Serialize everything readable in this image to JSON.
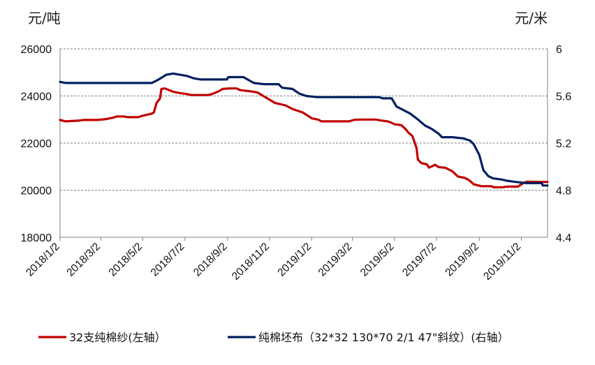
{
  "chart_data": {
    "type": "line",
    "left_axis_unit": "元/吨",
    "right_axis_unit": "元/米",
    "left_ylim": [
      18000,
      26000
    ],
    "left_ticks": [
      "26000",
      "24000",
      "22000",
      "20000",
      "18000"
    ],
    "right_ylim": [
      4.4,
      6.0
    ],
    "right_ticks": [
      "6",
      "5.6",
      "5.2",
      "4.8",
      "4.4"
    ],
    "xlim": [
      "2018-01-02",
      "2019-12-10"
    ],
    "x_ticks": [
      {
        "date": "2018-01-02",
        "label": "2018/1/2"
      },
      {
        "date": "2018-03-02",
        "label": "2018/3/2"
      },
      {
        "date": "2018-05-02",
        "label": "2018/5/2"
      },
      {
        "date": "2018-07-02",
        "label": "2018/7/2"
      },
      {
        "date": "2018-09-02",
        "label": "2018/9/2"
      },
      {
        "date": "2018-11-02",
        "label": "2018/11/2"
      },
      {
        "date": "2019-01-02",
        "label": "2019/1/2"
      },
      {
        "date": "2019-03-02",
        "label": "2019/3/2"
      },
      {
        "date": "2019-05-02",
        "label": "2019/5/2"
      },
      {
        "date": "2019-07-02",
        "label": "2019/7/2"
      },
      {
        "date": "2019-09-02",
        "label": "2019/9/2"
      },
      {
        "date": "2019-11-02",
        "label": "2019/11/2"
      }
    ],
    "grid": "horizontal dashed",
    "legend_position": "bottom",
    "series": [
      {
        "name": "32支纯棉纱(左轴）",
        "axis": "left",
        "color": "#c00000",
        "points": [
          [
            "2018-01-02",
            22980
          ],
          [
            "2018-01-10",
            22920
          ],
          [
            "2018-01-28",
            22950
          ],
          [
            "2018-02-05",
            22980
          ],
          [
            "2018-02-25",
            22980
          ],
          [
            "2018-03-10",
            23020
          ],
          [
            "2018-03-20",
            23080
          ],
          [
            "2018-03-25",
            23130
          ],
          [
            "2018-04-05",
            23130
          ],
          [
            "2018-04-10",
            23100
          ],
          [
            "2018-04-25",
            23100
          ],
          [
            "2018-05-02",
            23160
          ],
          [
            "2018-05-15",
            23250
          ],
          [
            "2018-05-18",
            23300
          ],
          [
            "2018-05-22",
            23700
          ],
          [
            "2018-05-27",
            23900
          ],
          [
            "2018-05-29",
            24300
          ],
          [
            "2018-06-03",
            24320
          ],
          [
            "2018-06-15",
            24180
          ],
          [
            "2018-06-25",
            24120
          ],
          [
            "2018-07-05",
            24080
          ],
          [
            "2018-07-12",
            24040
          ],
          [
            "2018-08-05",
            24040
          ],
          [
            "2018-08-12",
            24100
          ],
          [
            "2018-08-20",
            24200
          ],
          [
            "2018-08-26",
            24300
          ],
          [
            "2018-09-05",
            24320
          ],
          [
            "2018-09-15",
            24320
          ],
          [
            "2018-09-20",
            24250
          ],
          [
            "2018-10-05",
            24200
          ],
          [
            "2018-10-15",
            24150
          ],
          [
            "2018-10-25",
            23980
          ],
          [
            "2018-11-10",
            23700
          ],
          [
            "2018-11-25",
            23600
          ],
          [
            "2018-12-05",
            23450
          ],
          [
            "2018-12-20",
            23300
          ],
          [
            "2018-12-28",
            23150
          ],
          [
            "2019-01-02",
            23050
          ],
          [
            "2019-01-12",
            22990
          ],
          [
            "2019-01-16",
            22920
          ],
          [
            "2019-02-15",
            22920
          ],
          [
            "2019-02-25",
            22920
          ],
          [
            "2019-03-05",
            22990
          ],
          [
            "2019-03-15",
            23000
          ],
          [
            "2019-04-05",
            23000
          ],
          [
            "2019-04-12",
            22960
          ],
          [
            "2019-04-22",
            22920
          ],
          [
            "2019-04-28",
            22860
          ],
          [
            "2019-05-02",
            22800
          ],
          [
            "2019-05-12",
            22760
          ],
          [
            "2019-05-18",
            22600
          ],
          [
            "2019-05-22",
            22450
          ],
          [
            "2019-05-28",
            22300
          ],
          [
            "2019-06-03",
            21800
          ],
          [
            "2019-06-05",
            21300
          ],
          [
            "2019-06-10",
            21150
          ],
          [
            "2019-06-18",
            21100
          ],
          [
            "2019-06-21",
            20960
          ],
          [
            "2019-06-26",
            21020
          ],
          [
            "2019-06-30",
            21080
          ],
          [
            "2019-07-05",
            20980
          ],
          [
            "2019-07-15",
            20950
          ],
          [
            "2019-07-25",
            20800
          ],
          [
            "2019-08-02",
            20580
          ],
          [
            "2019-08-12",
            20520
          ],
          [
            "2019-08-18",
            20430
          ],
          [
            "2019-08-25",
            20250
          ],
          [
            "2019-09-05",
            20170
          ],
          [
            "2019-09-20",
            20170
          ],
          [
            "2019-09-23",
            20120
          ],
          [
            "2019-10-05",
            20120
          ],
          [
            "2019-10-12",
            20150
          ],
          [
            "2019-10-28",
            20150
          ],
          [
            "2019-11-05",
            20300
          ],
          [
            "2019-11-10",
            20360
          ],
          [
            "2019-12-10",
            20350
          ]
        ]
      },
      {
        "name": "纯棉坯布（32*32 130*70 2/1 47\"斜纹）(右轴）",
        "axis": "right",
        "color": "#002060",
        "points": [
          [
            "2018-01-02",
            5.72
          ],
          [
            "2018-01-10",
            5.71
          ],
          [
            "2018-05-15",
            5.71
          ],
          [
            "2018-05-25",
            5.74
          ],
          [
            "2018-06-05",
            5.78
          ],
          [
            "2018-06-15",
            5.79
          ],
          [
            "2018-06-25",
            5.78
          ],
          [
            "2018-07-05",
            5.77
          ],
          [
            "2018-07-15",
            5.75
          ],
          [
            "2018-07-25",
            5.74
          ],
          [
            "2018-09-01",
            5.74
          ],
          [
            "2018-09-03",
            5.76
          ],
          [
            "2018-09-25",
            5.76
          ],
          [
            "2018-10-01",
            5.74
          ],
          [
            "2018-10-10",
            5.71
          ],
          [
            "2018-10-25",
            5.7
          ],
          [
            "2018-11-15",
            5.7
          ],
          [
            "2018-11-20",
            5.67
          ],
          [
            "2018-12-05",
            5.66
          ],
          [
            "2018-12-15",
            5.62
          ],
          [
            "2018-12-25",
            5.6
          ],
          [
            "2019-01-10",
            5.59
          ],
          [
            "2019-04-10",
            5.59
          ],
          [
            "2019-04-15",
            5.58
          ],
          [
            "2019-04-28",
            5.58
          ],
          [
            "2019-05-05",
            5.51
          ],
          [
            "2019-05-15",
            5.48
          ],
          [
            "2019-05-25",
            5.45
          ],
          [
            "2019-06-05",
            5.4
          ],
          [
            "2019-06-15",
            5.35
          ],
          [
            "2019-06-25",
            5.32
          ],
          [
            "2019-07-05",
            5.28
          ],
          [
            "2019-07-10",
            5.25
          ],
          [
            "2019-07-25",
            5.25
          ],
          [
            "2019-08-10",
            5.24
          ],
          [
            "2019-08-20",
            5.22
          ],
          [
            "2019-08-25",
            5.19
          ],
          [
            "2019-09-02",
            5.1
          ],
          [
            "2019-09-08",
            4.97
          ],
          [
            "2019-09-15",
            4.92
          ],
          [
            "2019-09-22",
            4.9
          ],
          [
            "2019-10-05",
            4.89
          ],
          [
            "2019-10-12",
            4.88
          ],
          [
            "2019-10-25",
            4.87
          ],
          [
            "2019-11-10",
            4.86
          ],
          [
            "2019-12-02",
            4.86
          ],
          [
            "2019-12-03",
            4.84
          ],
          [
            "2019-12-10",
            4.84
          ]
        ]
      }
    ]
  }
}
